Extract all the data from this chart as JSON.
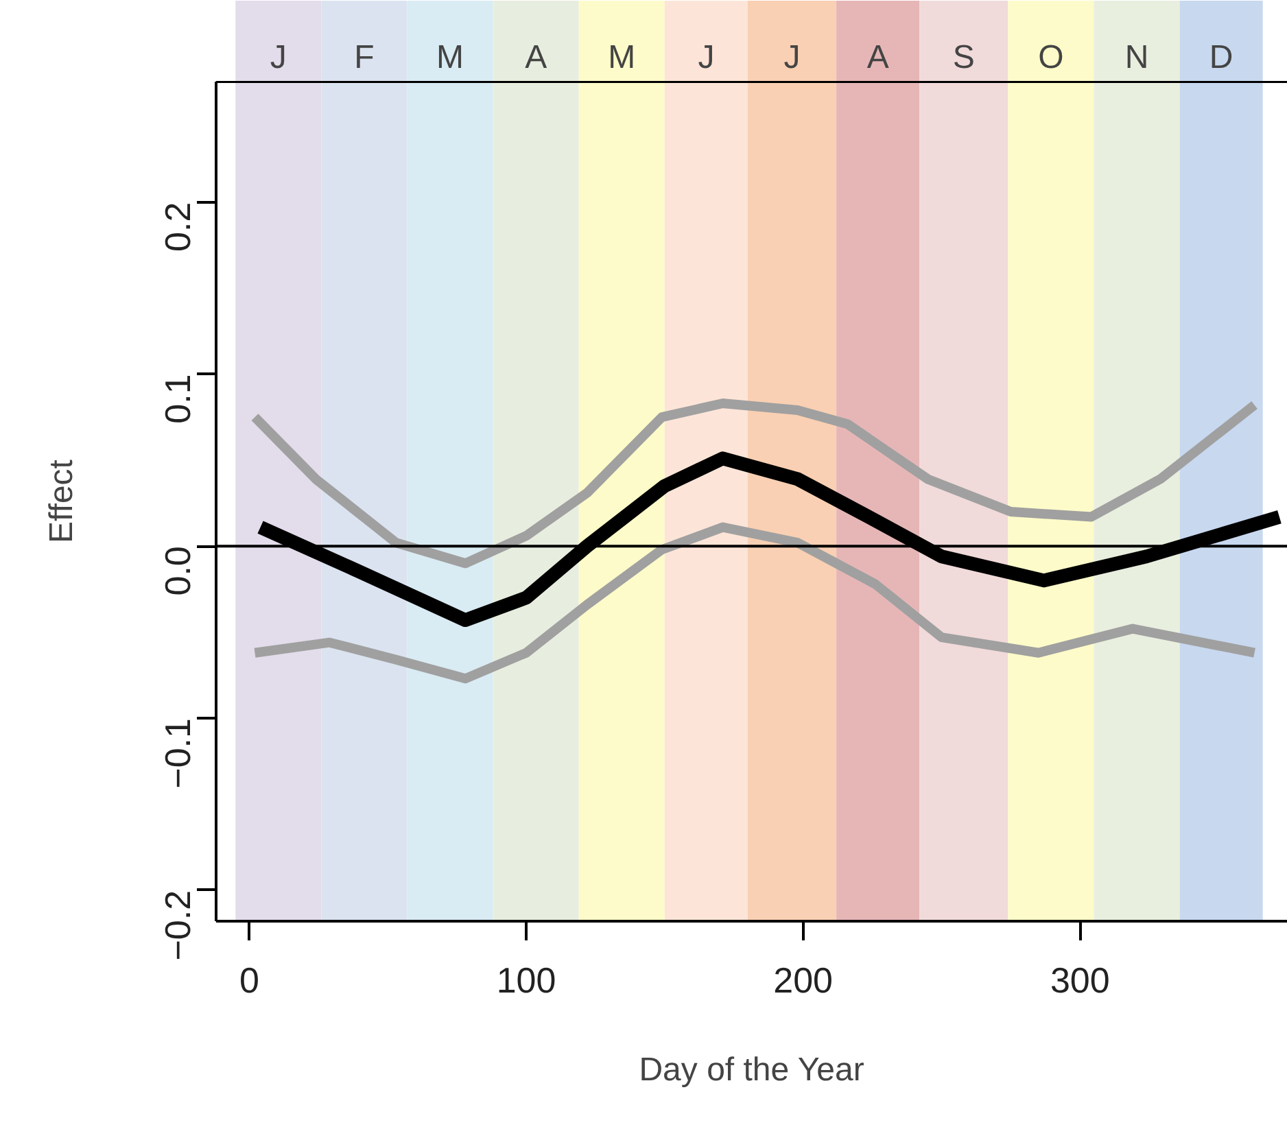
{
  "chart_data": {
    "type": "line",
    "xlabel": "Day of the Year",
    "ylabel": "Effect",
    "xlim": [
      -12,
      375
    ],
    "ylim": [
      -0.218,
      0.27
    ],
    "xticks": [
      0,
      100,
      200,
      300
    ],
    "yticks": [
      -0.2,
      -0.1,
      {
        "value": 0,
        "label": "0.0"
      },
      0.1,
      0.2
    ],
    "grid": false,
    "line_style": "solid",
    "marker": "none",
    "series": [
      {
        "color": "#a0a0a0",
        "x": [
          2,
          24,
          53,
          78,
          100,
          122,
          149,
          171,
          198,
          216,
          245,
          275,
          304,
          329,
          363
        ],
        "values": [
          0.075,
          0.039,
          0.002,
          -0.01,
          0.006,
          0.031,
          0.075,
          0.083,
          0.079,
          0.071,
          0.039,
          0.02,
          0.017,
          0.039,
          0.082
        ]
      },
      {
        "color": "#a0a0a0",
        "x": [
          2,
          29,
          53,
          78,
          100,
          122,
          149,
          171,
          198,
          226,
          250,
          285,
          319,
          363
        ],
        "values": [
          -0.062,
          -0.056,
          -0.066,
          -0.077,
          -0.062,
          -0.034,
          -0.002,
          0.011,
          0.002,
          -0.022,
          -0.053,
          -0.062,
          -0.048,
          -0.062
        ]
      },
      {
        "color": "#000000",
        "x": [
          4,
          40,
          78,
          100,
          122,
          150,
          171,
          198,
          226,
          250,
          287,
          324,
          372
        ],
        "values": [
          0.011,
          -0.015,
          -0.043,
          -0.03,
          0.0,
          0.035,
          0.051,
          0.039,
          0.015,
          -0.006,
          -0.02,
          -0.006,
          0.017
        ]
      }
    ],
    "ref_lines": [
      {
        "axis": "y",
        "value": 0,
        "color": "#000000"
      }
    ],
    "bands": [
      {
        "axis": "x",
        "from": -5,
        "to": 26,
        "label": "J",
        "color": "#e3dcea"
      },
      {
        "axis": "x",
        "from": 26,
        "to": 57,
        "label": "F",
        "color": "#dbe3f0"
      },
      {
        "axis": "x",
        "from": 57,
        "to": 88,
        "label": "M",
        "color": "#d9ebf3"
      },
      {
        "axis": "x",
        "from": 88,
        "to": 119,
        "label": "A",
        "color": "#e8eedf"
      },
      {
        "axis": "x",
        "from": 119,
        "to": 150,
        "label": "M",
        "color": "#fdfbc9"
      },
      {
        "axis": "x",
        "from": 150,
        "to": 180,
        "label": "J",
        "color": "#fce5d8"
      },
      {
        "axis": "x",
        "from": 180,
        "to": 212,
        "label": "J",
        "color": "#f9d0b3"
      },
      {
        "axis": "x",
        "from": 212,
        "to": 242,
        "label": "A",
        "color": "#e6b6b7"
      },
      {
        "axis": "x",
        "from": 242,
        "to": 274,
        "label": "S",
        "color": "#f1dada"
      },
      {
        "axis": "x",
        "from": 274,
        "to": 305,
        "label": "O",
        "color": "#fdfbc9"
      },
      {
        "axis": "x",
        "from": 305,
        "to": 336,
        "label": "N",
        "color": "#e9efdf"
      },
      {
        "axis": "x",
        "from": 336,
        "to": 366,
        "label": "D",
        "color": "#c7d8ef"
      }
    ]
  }
}
